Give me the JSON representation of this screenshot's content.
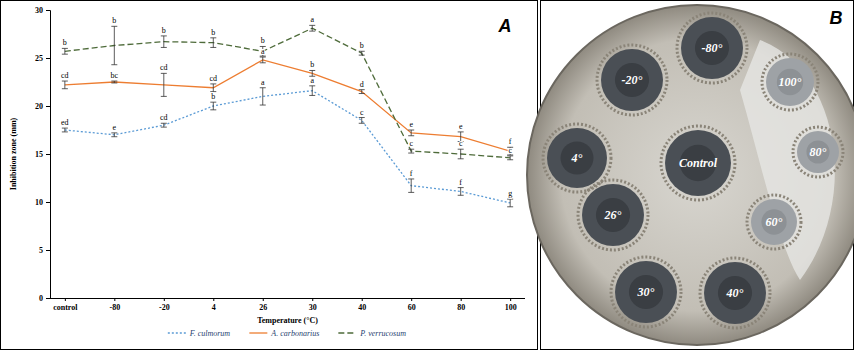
{
  "chart_data": {
    "type": "line",
    "panel_label": "A",
    "x_label": "Temperature (°C)",
    "y_label": "Inhibition zone (mm)",
    "categories": [
      "control",
      "-80",
      "-20",
      "4",
      "26",
      "30",
      "40",
      "60",
      "80",
      "100"
    ],
    "ylim": [
      0,
      30
    ],
    "yticks": [
      0,
      5,
      10,
      15,
      20,
      25,
      30
    ],
    "grid": false,
    "legend": "bottom",
    "series": [
      {
        "name": "F. culmorum",
        "color": "#5b9bd5",
        "line_style": "dotted",
        "values": [
          17.5,
          17.0,
          18.0,
          20.0,
          21.0,
          21.6,
          18.5,
          11.7,
          11.1,
          9.9
        ],
        "errors": [
          0.2,
          0.2,
          0.2,
          0.4,
          0.9,
          0.5,
          0.3,
          0.7,
          0.4,
          0.4
        ],
        "letters": [
          "ed",
          "e",
          "cd",
          "b",
          "a",
          "a",
          "c",
          "f",
          "f",
          "g"
        ]
      },
      {
        "name": "A. carbonarius",
        "color": "#ed7d31",
        "line_style": "solid",
        "values": [
          22.2,
          22.5,
          22.2,
          21.9,
          24.8,
          23.4,
          21.5,
          17.2,
          16.8,
          15.3
        ],
        "errors": [
          0.4,
          0.1,
          1.2,
          0.4,
          0.3,
          0.3,
          0.2,
          0.3,
          0.5,
          0.4
        ],
        "letters": [
          "cd",
          "bc",
          "cd",
          "cd",
          "a",
          "b",
          "d",
          "e",
          "e",
          "f"
        ]
      },
      {
        "name": "P. verrucosum",
        "color": "#4e6b3a",
        "line_style": "dashed",
        "values": [
          25.7,
          26.3,
          26.7,
          26.6,
          25.7,
          28.1,
          25.5,
          15.3,
          15.0,
          14.6
        ],
        "errors": [
          0.3,
          2.0,
          0.6,
          0.5,
          0.5,
          0.3,
          0.2,
          0.2,
          0.5,
          0.2
        ],
        "letters": [
          "b",
          "b",
          "b",
          "b",
          "b",
          "a",
          "b",
          "c",
          "c",
          "c"
        ]
      }
    ]
  },
  "image": {
    "panel_label": "B",
    "wells": [
      "-80°",
      "-20°",
      "4°",
      "26°",
      "Control",
      "30°",
      "40°",
      "60°",
      "80°",
      "100°"
    ]
  }
}
